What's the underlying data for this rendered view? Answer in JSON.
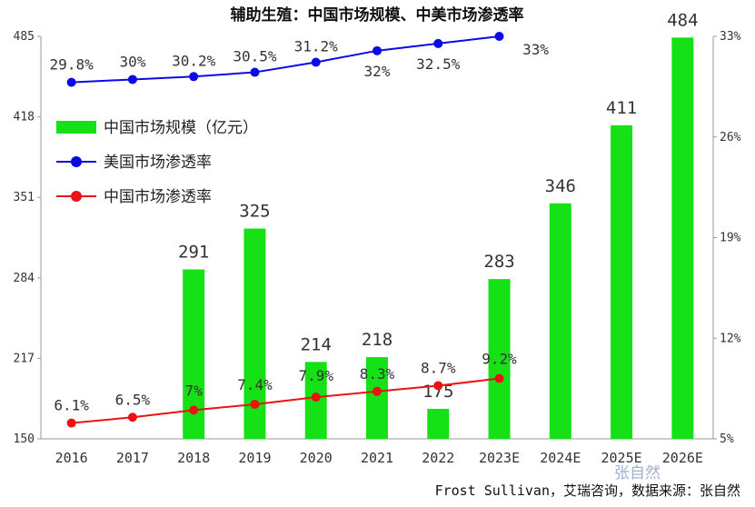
{
  "chart_data": {
    "type": "bar",
    "title": "辅助生殖：中国市场规模、中美市场渗透率",
    "categories": [
      "2016",
      "2017",
      "2018",
      "2019",
      "2020",
      "2021",
      "2022",
      "2023E",
      "2024E",
      "2025E",
      "2026E"
    ],
    "series": [
      {
        "name": "中国市场规模（亿元）",
        "type": "bar",
        "axis": "left",
        "color": "#16e016",
        "values": [
          null,
          null,
          291,
          325,
          214,
          218,
          175,
          283,
          346,
          411,
          484
        ],
        "labels": [
          null,
          null,
          "291",
          "325",
          "214",
          "218",
          "175",
          "283",
          "346",
          "411",
          "484"
        ]
      },
      {
        "name": "美国市场渗透率",
        "type": "line",
        "axis": "right",
        "color": "#0a0ae6",
        "values": [
          29.8,
          30,
          30.2,
          30.5,
          31.2,
          32,
          32.5,
          33,
          null,
          null,
          null
        ],
        "labels": [
          "29.8%",
          "30%",
          "30.2%",
          "30.5%",
          "31.2%",
          "32%",
          "32.5%",
          "33%",
          null,
          null,
          null
        ]
      },
      {
        "name": "中国市场渗透率",
        "type": "line",
        "axis": "right",
        "color": "#ee1111",
        "values": [
          6.1,
          6.5,
          7,
          7.4,
          7.9,
          8.3,
          8.7,
          9.2,
          null,
          null,
          null
        ],
        "labels": [
          "6.1%",
          "6.5%",
          "7%",
          "7.4%",
          "7.9%",
          "8.3%",
          "8.7%",
          "9.2%",
          null,
          null,
          null
        ]
      }
    ],
    "y_left": {
      "range": [
        150,
        485
      ],
      "ticks": [
        "150",
        "217",
        "284",
        "351",
        "418",
        "485"
      ]
    },
    "y_right": {
      "range": [
        5,
        33
      ],
      "ticks": [
        "5%",
        "12%",
        "19%",
        "26%",
        "33%"
      ]
    },
    "legend": "top-left",
    "grid": false
  },
  "source": "Frost Sullivan，艾瑞咨询，数据来源：张自然",
  "watermark": "张自然"
}
